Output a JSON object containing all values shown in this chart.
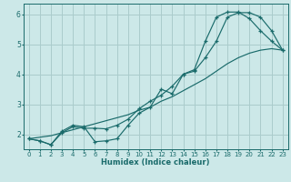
{
  "bg_color": "#cce8e8",
  "grid_color": "#aacccc",
  "line_color": "#1a6b6b",
  "xlabel": "Humidex (Indice chaleur)",
  "xlim": [
    -0.5,
    23.5
  ],
  "ylim": [
    1.5,
    6.35
  ],
  "xticks": [
    0,
    1,
    2,
    3,
    4,
    5,
    6,
    7,
    8,
    9,
    10,
    11,
    12,
    13,
    14,
    15,
    16,
    17,
    18,
    19,
    20,
    21,
    22,
    23
  ],
  "yticks": [
    2,
    3,
    4,
    5,
    6
  ],
  "lines": [
    {
      "x": [
        0,
        1,
        2,
        3,
        4,
        5,
        6,
        7,
        8,
        9,
        10,
        11,
        12,
        13,
        14,
        15,
        16,
        17,
        18,
        19,
        20,
        21,
        22,
        23
      ],
      "y": [
        1.85,
        1.78,
        1.65,
        2.1,
        2.3,
        2.25,
        1.75,
        1.78,
        1.85,
        2.3,
        2.7,
        2.9,
        3.5,
        3.35,
        4.0,
        4.1,
        4.55,
        5.1,
        5.9,
        6.05,
        6.05,
        5.9,
        5.45,
        4.8
      ],
      "has_markers": true
    },
    {
      "x": [
        0,
        1,
        2,
        3,
        4,
        5,
        6,
        7,
        8,
        9,
        10,
        11,
        12,
        13,
        14,
        15,
        16,
        17,
        18,
        19,
        20,
        21,
        22,
        23
      ],
      "y": [
        1.85,
        1.78,
        1.65,
        2.05,
        2.25,
        2.2,
        2.2,
        2.18,
        2.3,
        2.5,
        2.85,
        3.1,
        3.3,
        3.6,
        4.0,
        4.15,
        5.1,
        5.9,
        6.07,
        6.07,
        5.85,
        5.45,
        5.1,
        4.8
      ],
      "has_markers": true
    },
    {
      "x": [
        0,
        1,
        2,
        3,
        4,
        5,
        6,
        7,
        8,
        9,
        10,
        11,
        12,
        13,
        14,
        15,
        16,
        17,
        18,
        19,
        20,
        21,
        22,
        23
      ],
      "y": [
        1.85,
        1.9,
        1.95,
        2.05,
        2.15,
        2.25,
        2.35,
        2.45,
        2.55,
        2.65,
        2.8,
        2.9,
        3.1,
        3.25,
        3.45,
        3.65,
        3.85,
        4.1,
        4.35,
        4.55,
        4.7,
        4.8,
        4.85,
        4.8
      ],
      "has_markers": false
    }
  ]
}
